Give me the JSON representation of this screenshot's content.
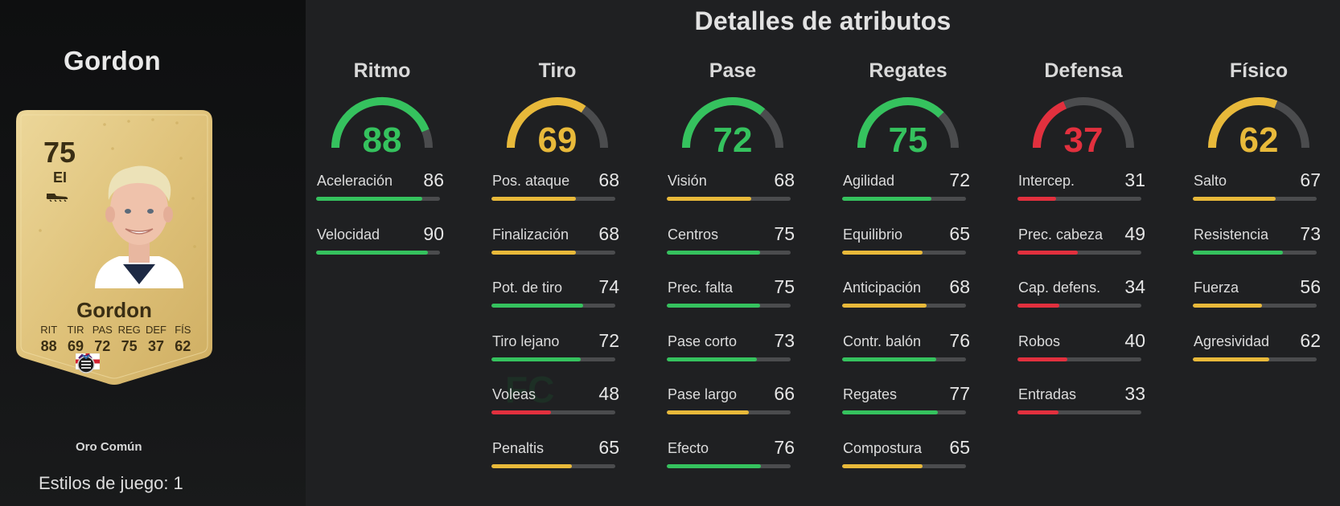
{
  "player": {
    "name": "Gordon",
    "rating": "75",
    "position": "EI",
    "card_name": "Gordon",
    "card_stats": [
      {
        "label": "RIT",
        "value": "88"
      },
      {
        "label": "TIR",
        "value": "69"
      },
      {
        "label": "PAS",
        "value": "72"
      },
      {
        "label": "REG",
        "value": "75"
      },
      {
        "label": "DEF",
        "value": "37"
      },
      {
        "label": "FÍS",
        "value": "62"
      }
    ],
    "version": "Oro Común",
    "playstyles": "Estilos de juego: 1"
  },
  "icons": {
    "boot": "boot-icon",
    "nation": "england-flag-icon",
    "league": "premier-league-icon",
    "club": "newcastle-crest-icon"
  },
  "colors": {
    "green": "#35c25e",
    "yellow": "#e8b93a",
    "red": "#e2303e",
    "track": "#4b4c4e",
    "card_gold": "#e2c77c"
  },
  "details": {
    "title": "Detalles de atributos",
    "categories": [
      {
        "name": "Ritmo",
        "value": 88,
        "color": "green",
        "stats": [
          {
            "label": "Aceleración",
            "value": 86,
            "color": "green"
          },
          {
            "label": "Velocidad",
            "value": 90,
            "color": "green"
          }
        ]
      },
      {
        "name": "Tiro",
        "value": 69,
        "color": "yellow",
        "stats": [
          {
            "label": "Pos. ataque",
            "value": 68,
            "color": "yellow"
          },
          {
            "label": "Finalización",
            "value": 68,
            "color": "yellow"
          },
          {
            "label": "Pot. de tiro",
            "value": 74,
            "color": "green"
          },
          {
            "label": "Tiro lejano",
            "value": 72,
            "color": "green"
          },
          {
            "label": "Voleas",
            "value": 48,
            "color": "red"
          },
          {
            "label": "Penaltis",
            "value": 65,
            "color": "yellow"
          }
        ]
      },
      {
        "name": "Pase",
        "value": 72,
        "color": "green",
        "stats": [
          {
            "label": "Visión",
            "value": 68,
            "color": "yellow"
          },
          {
            "label": "Centros",
            "value": 75,
            "color": "green"
          },
          {
            "label": "Prec. falta",
            "value": 75,
            "color": "green"
          },
          {
            "label": "Pase corto",
            "value": 73,
            "color": "green"
          },
          {
            "label": "Pase largo",
            "value": 66,
            "color": "yellow"
          },
          {
            "label": "Efecto",
            "value": 76,
            "color": "green"
          }
        ]
      },
      {
        "name": "Regates",
        "value": 75,
        "color": "green",
        "stats": [
          {
            "label": "Agilidad",
            "value": 72,
            "color": "green"
          },
          {
            "label": "Equilibrio",
            "value": 65,
            "color": "yellow"
          },
          {
            "label": "Anticipación",
            "value": 68,
            "color": "yellow"
          },
          {
            "label": "Contr. balón",
            "value": 76,
            "color": "green"
          },
          {
            "label": "Regates",
            "value": 77,
            "color": "green"
          },
          {
            "label": "Compostura",
            "value": 65,
            "color": "yellow"
          }
        ]
      },
      {
        "name": "Defensa",
        "value": 37,
        "color": "red",
        "stats": [
          {
            "label": "Intercep.",
            "value": 31,
            "color": "red"
          },
          {
            "label": "Prec. cabeza",
            "value": 49,
            "color": "red"
          },
          {
            "label": "Cap. defens.",
            "value": 34,
            "color": "red"
          },
          {
            "label": "Robos",
            "value": 40,
            "color": "red"
          },
          {
            "label": "Entradas",
            "value": 33,
            "color": "red"
          }
        ]
      },
      {
        "name": "Físico",
        "value": 62,
        "color": "yellow",
        "stats": [
          {
            "label": "Salto",
            "value": 67,
            "color": "yellow"
          },
          {
            "label": "Resistencia",
            "value": 73,
            "color": "green"
          },
          {
            "label": "Fuerza",
            "value": 56,
            "color": "yellow"
          },
          {
            "label": "Agresividad",
            "value": 62,
            "color": "yellow"
          }
        ]
      }
    ]
  }
}
